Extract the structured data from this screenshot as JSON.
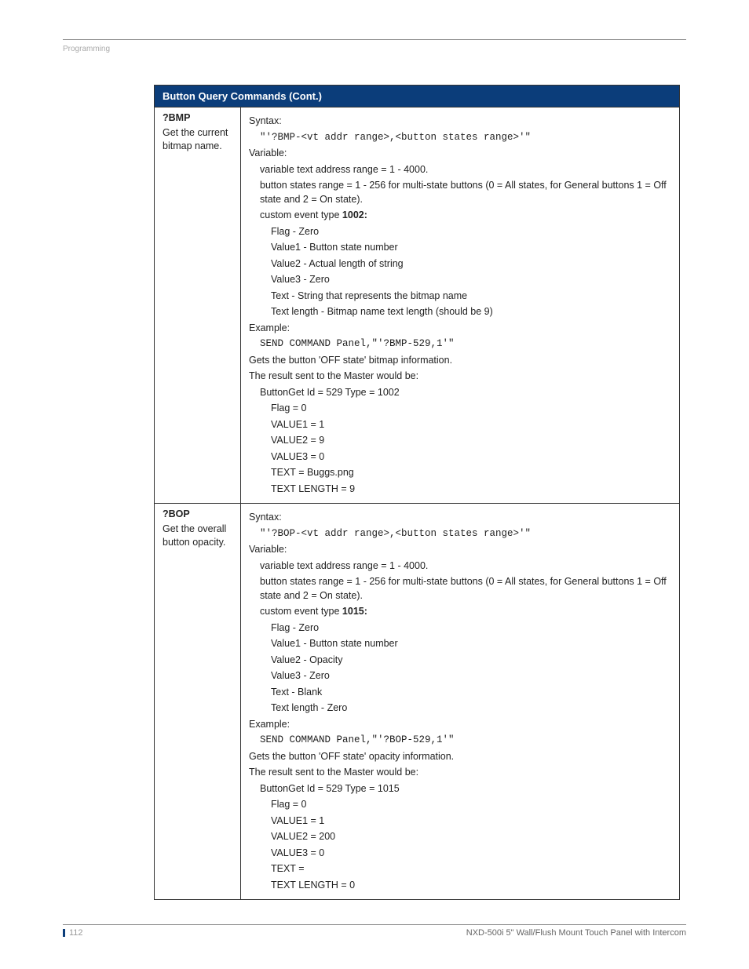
{
  "header": {
    "section": "Programming"
  },
  "table": {
    "title": "Button Query Commands (Cont.)",
    "rows": [
      {
        "cmd": "?BMP",
        "desc": "Get the current bitmap name.",
        "syntax_label": "Syntax:",
        "syntax_code": "\"'?BMP-<vt addr range>,<button states range>'\"",
        "variable_label": "Variable:",
        "var_addr": "variable text address range = 1 - 4000.",
        "var_states": "button states range = 1 - 256 for multi-state buttons (0 = All states, for General buttons 1 = Off state and 2 = On state).",
        "event_type_prefix": "custom event type ",
        "event_type_num": "1002:",
        "flag": "Flag   - Zero",
        "value1": "Value1 - Button state number",
        "value2": "Value2 - Actual length of string",
        "value3": "Value3 - Zero",
        "text": "Text   - String that represents the bitmap name",
        "textlen": "Text length - Bitmap name text length (should be 9)",
        "example_label": "Example:",
        "example_code": "SEND COMMAND Panel,\"'?BMP-529,1'\"",
        "example_desc": "Gets the button 'OFF state' bitmap information.",
        "result_label": "The result sent to the Master would be:",
        "r_buttonget": "ButtonGet Id = 529 Type = 1002",
        "r_flag": "Flag  = 0",
        "r_v1": "VALUE1 = 1",
        "r_v2": "VALUE2 = 9",
        "r_v3": "VALUE3 = 0",
        "r_text": "TEXT  = Buggs.png",
        "r_textlen": "TEXT LENGTH = 9"
      },
      {
        "cmd": "?BOP",
        "desc": "Get the overall button opacity.",
        "syntax_label": "Syntax:",
        "syntax_code": "\"'?BOP-<vt addr range>,<button states range>'\"",
        "variable_label": "Variable:",
        "var_addr": "variable text address range = 1 - 4000.",
        "var_states": "button states range = 1 - 256 for multi-state buttons (0 = All states, for General buttons 1 = Off state and 2 = On state).",
        "event_type_prefix": "custom event type ",
        "event_type_num": "1015:",
        "flag": "Flag   - Zero",
        "value1": "Value1 - Button state number",
        "value2": "Value2 - Opacity",
        "value3": "Value3 - Zero",
        "text": "Text   - Blank",
        "textlen": "Text length - Zero",
        "example_label": "Example:",
        "example_code": "SEND COMMAND Panel,\"'?BOP-529,1'\"",
        "example_desc": "Gets the button 'OFF state' opacity information.",
        "result_label": "The result sent to the Master would be:",
        "r_buttonget": "ButtonGet Id = 529 Type = 1015",
        "r_flag": "Flag  = 0",
        "r_v1": "VALUE1 = 1",
        "r_v2": "VALUE2 = 200",
        "r_v3": "VALUE3 = 0",
        "r_text": "TEXT  =",
        "r_textlen": "TEXT LENGTH = 0"
      }
    ]
  },
  "footer": {
    "page": "112",
    "title": "NXD-500i 5\" Wall/Flush Mount Touch Panel with Intercom"
  }
}
